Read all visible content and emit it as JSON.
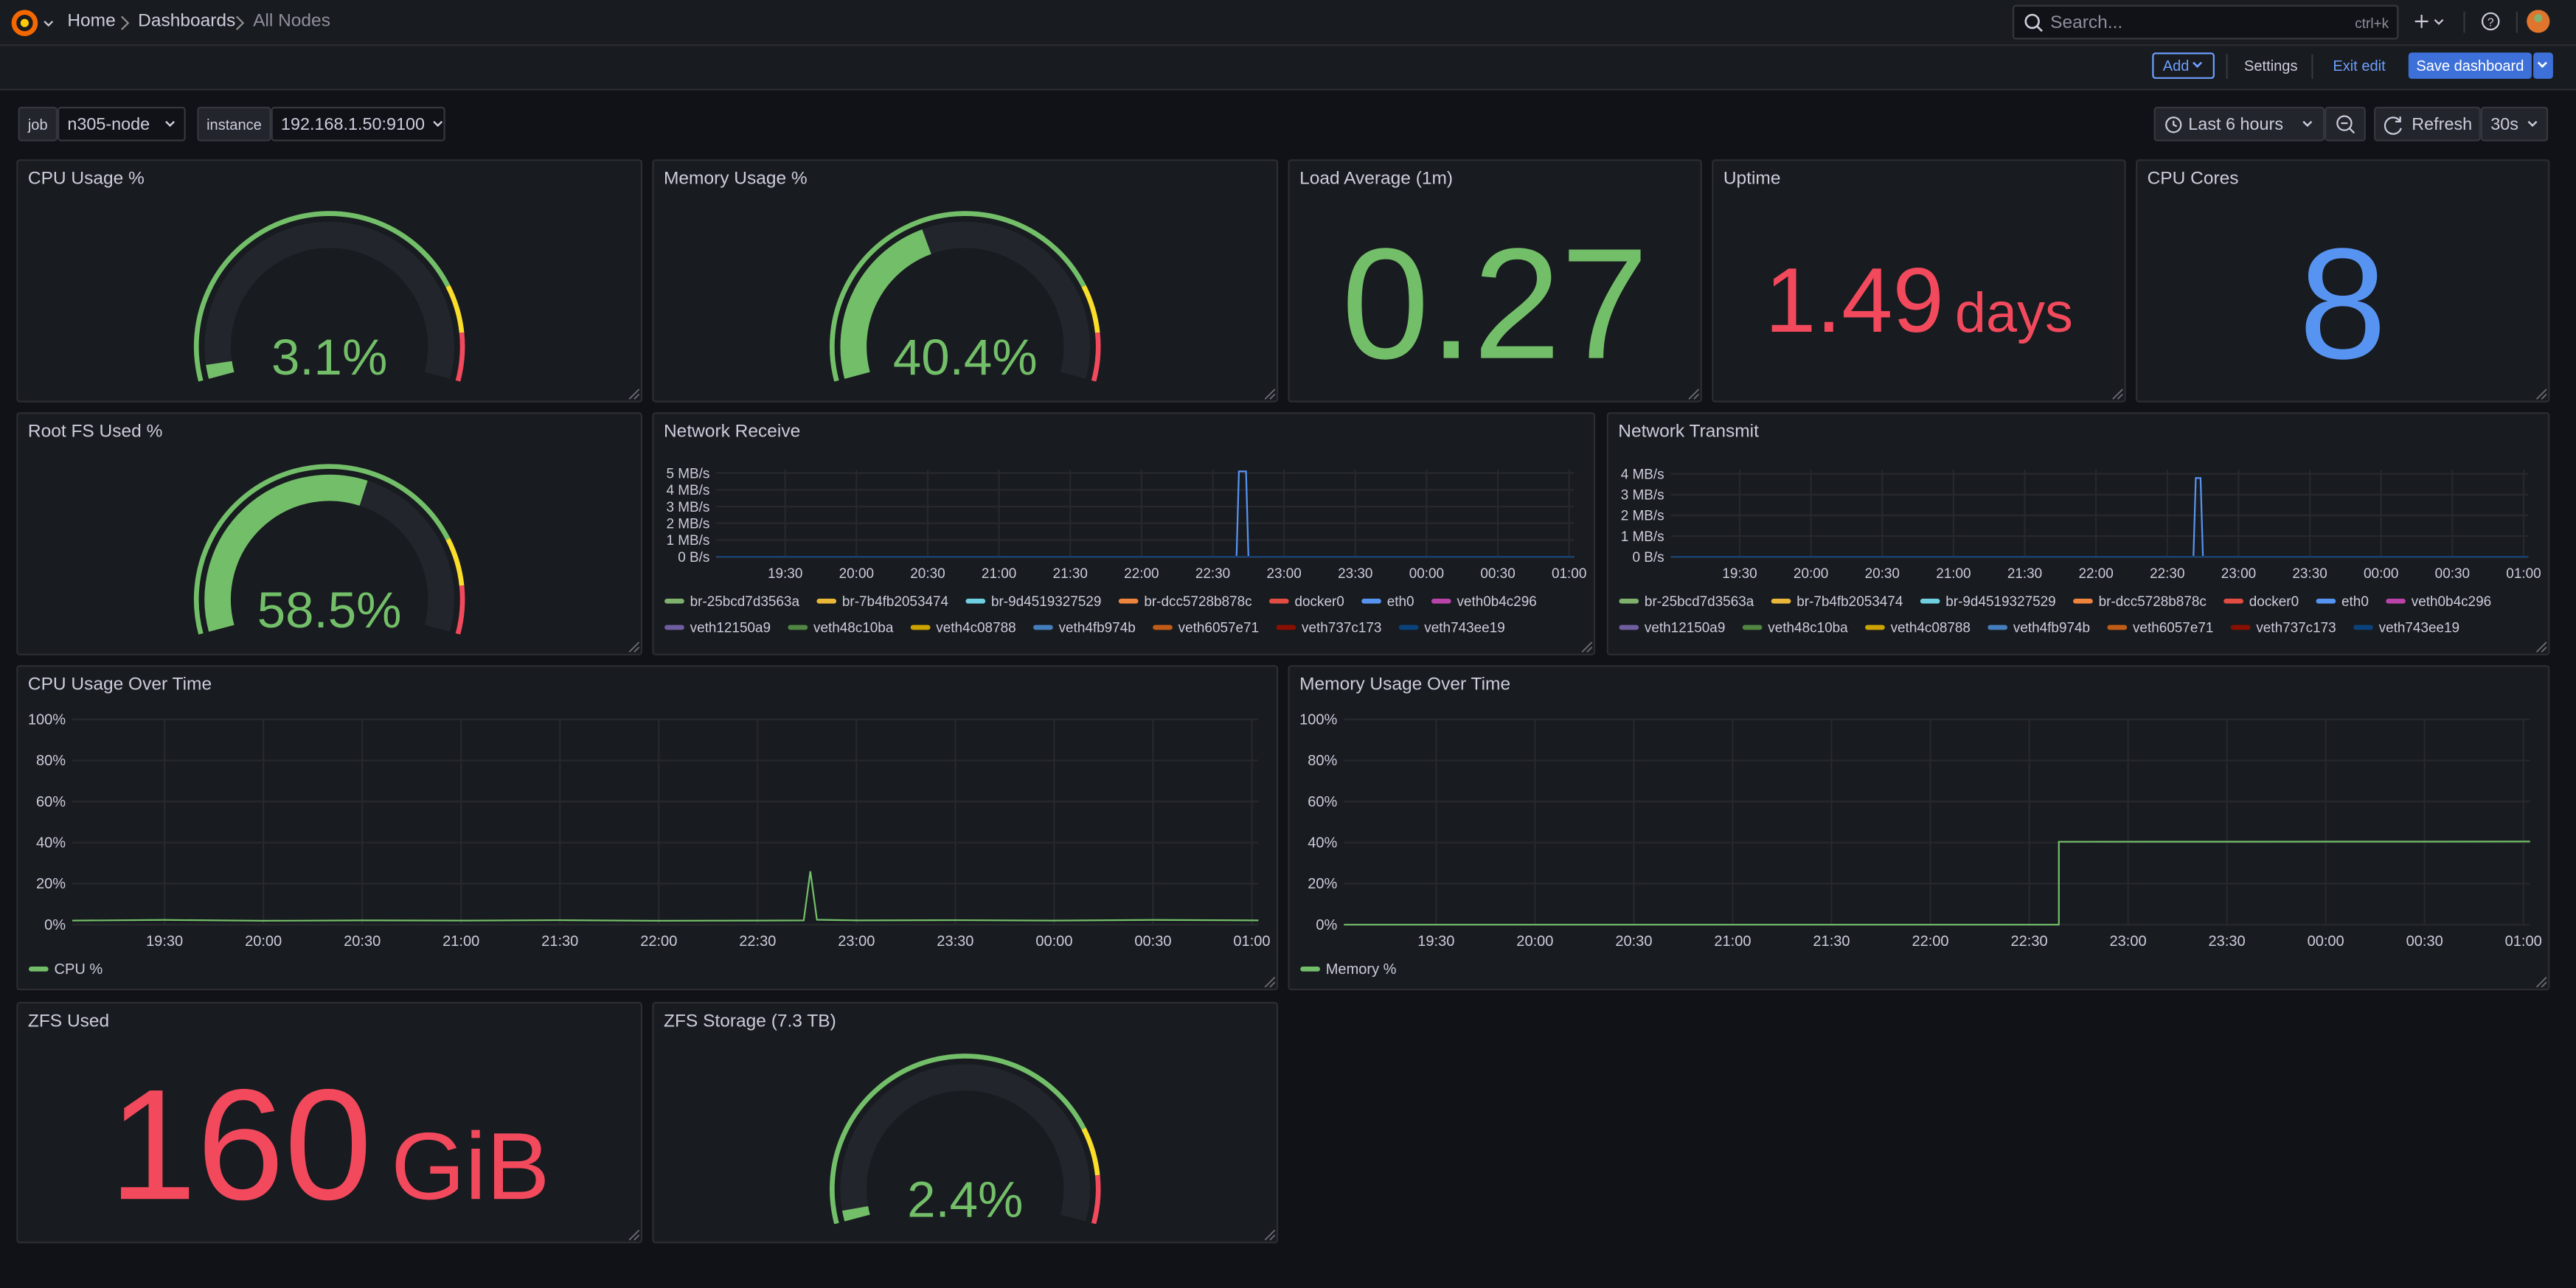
{
  "breadcrumbs": [
    "Home",
    "Dashboards",
    "All Nodes"
  ],
  "search": {
    "placeholder": "Search...",
    "shortcut": "ctrl+k"
  },
  "toolbar": {
    "add": "Add",
    "settings": "Settings",
    "exit": "Exit edit",
    "save": "Save dashboard"
  },
  "variables": [
    {
      "label": "job",
      "value": "n305-node"
    },
    {
      "label": "instance",
      "value": "192.168.1.50:9100"
    }
  ],
  "time_range": "Last 6 hours",
  "refresh": "Refresh",
  "refresh_interval": "30s",
  "panels": [
    {
      "type": "gauge",
      "title": "CPU Usage %",
      "value": 3.1,
      "value_label": "3.1%",
      "min": 0,
      "max": 100,
      "thresholds": [
        {
          "value": 0,
          "color": "#73bf69"
        },
        {
          "value": 80,
          "color": "#fade2a"
        },
        {
          "value": 90,
          "color": "#f2495c"
        }
      ]
    },
    {
      "type": "gauge",
      "title": "Memory Usage %",
      "value": 40.4,
      "value_label": "40.4%",
      "min": 0,
      "max": 100,
      "thresholds": [
        {
          "value": 0,
          "color": "#73bf69"
        },
        {
          "value": 80,
          "color": "#fade2a"
        },
        {
          "value": 90,
          "color": "#f2495c"
        }
      ]
    },
    {
      "type": "stat",
      "title": "Load Average (1m)",
      "value": 0.27,
      "color": "#73bf69"
    },
    {
      "type": "stat",
      "title": "Uptime",
      "value": 1.49,
      "unit": "days",
      "color": "#f2495c"
    },
    {
      "type": "stat",
      "title": "CPU Cores",
      "value": 8,
      "color": "#5794f2"
    },
    {
      "type": "gauge",
      "title": "Root FS Used %",
      "value": 58.5,
      "value_label": "58.5%",
      "min": 0,
      "max": 100,
      "thresholds": [
        {
          "value": 0,
          "color": "#73bf69"
        },
        {
          "value": 80,
          "color": "#fade2a"
        },
        {
          "value": 90,
          "color": "#f2495c"
        }
      ]
    },
    {
      "type": "timeseries",
      "title": "Network Receive",
      "x": [
        "19:01",
        "22:40",
        "22:41",
        "22:44",
        "22:45",
        "01:02"
      ],
      "xlim": [
        "19:01",
        "01:02"
      ],
      "xticks": [
        "19:30",
        "20:00",
        "20:30",
        "21:00",
        "21:30",
        "22:00",
        "22:30",
        "23:00",
        "23:30",
        "00:00",
        "00:30",
        "01:00"
      ],
      "ylim": [
        0,
        5.2
      ],
      "yticks": [
        {
          "value": 0,
          "label": "0 B/s"
        },
        {
          "value": 1,
          "label": "1 MB/s"
        },
        {
          "value": 2,
          "label": "2 MB/s"
        },
        {
          "value": 3,
          "label": "3 MB/s"
        },
        {
          "value": 4,
          "label": "4 MB/s"
        },
        {
          "value": 5,
          "label": "5 MB/s"
        }
      ],
      "grid": true,
      "series": [
        {
          "name": "br-25bcd7d3563a",
          "color": "#7eb26d",
          "values": [
            0,
            0,
            0,
            0,
            0,
            0
          ]
        },
        {
          "name": "br-7b4fb2053474",
          "color": "#eab839",
          "values": [
            0,
            0,
            0,
            0,
            0,
            0
          ]
        },
        {
          "name": "br-9d4519327529",
          "color": "#6ed0e0",
          "values": [
            0,
            0,
            0,
            0,
            0,
            0
          ]
        },
        {
          "name": "br-dcc5728b878c",
          "color": "#ef843c",
          "values": [
            0,
            0,
            0,
            0,
            0,
            0
          ]
        },
        {
          "name": "docker0",
          "color": "#e24d42",
          "values": [
            0,
            0,
            0,
            0,
            0,
            0
          ]
        },
        {
          "name": "eth0",
          "color": "#5794f2",
          "values": [
            0,
            0,
            5.1,
            5.1,
            0,
            0
          ]
        },
        {
          "name": "veth0b4c296",
          "color": "#ba43a9",
          "values": [
            0,
            0,
            0,
            0,
            0,
            0
          ]
        },
        {
          "name": "veth12150a9",
          "color": "#705da0",
          "values": [
            0,
            0,
            0,
            0,
            0,
            0
          ]
        },
        {
          "name": "veth48c10ba",
          "color": "#508642",
          "values": [
            0,
            0,
            0,
            0,
            0,
            0
          ]
        },
        {
          "name": "veth4c08788",
          "color": "#cca300",
          "values": [
            0,
            0,
            0,
            0,
            0,
            0
          ]
        },
        {
          "name": "veth4fb974b",
          "color": "#447ebc",
          "values": [
            0,
            0,
            0,
            0,
            0,
            0
          ]
        },
        {
          "name": "veth6057e71",
          "color": "#c15c17",
          "values": [
            0,
            0,
            0,
            0,
            0,
            0
          ]
        },
        {
          "name": "veth737c173",
          "color": "#890f02",
          "values": [
            0,
            0,
            0,
            0,
            0,
            0
          ]
        },
        {
          "name": "veth743ee19",
          "color": "#0a437c",
          "values": [
            0,
            0,
            0,
            0,
            0,
            0
          ]
        }
      ]
    },
    {
      "type": "timeseries",
      "title": "Network Transmit",
      "x": [
        "19:01",
        "22:41",
        "22:42",
        "22:44",
        "22:45",
        "01:02"
      ],
      "xlim": [
        "19:01",
        "01:02"
      ],
      "xticks": [
        "19:30",
        "20:00",
        "20:30",
        "21:00",
        "21:30",
        "22:00",
        "22:30",
        "23:00",
        "23:30",
        "00:00",
        "00:30",
        "01:00"
      ],
      "ylim": [
        0,
        4.2
      ],
      "yticks": [
        {
          "value": 0,
          "label": "0 B/s"
        },
        {
          "value": 1,
          "label": "1 MB/s"
        },
        {
          "value": 2,
          "label": "2 MB/s"
        },
        {
          "value": 3,
          "label": "3 MB/s"
        },
        {
          "value": 4,
          "label": "4 MB/s"
        }
      ],
      "grid": true,
      "series": [
        {
          "name": "br-25bcd7d3563a",
          "color": "#7eb26d",
          "values": [
            0,
            0,
            0,
            0,
            0,
            0
          ]
        },
        {
          "name": "br-7b4fb2053474",
          "color": "#eab839",
          "values": [
            0,
            0,
            0,
            0,
            0,
            0
          ]
        },
        {
          "name": "br-9d4519327529",
          "color": "#6ed0e0",
          "values": [
            0,
            0,
            0,
            0,
            0,
            0
          ]
        },
        {
          "name": "br-dcc5728b878c",
          "color": "#ef843c",
          "values": [
            0,
            0,
            0,
            0,
            0,
            0
          ]
        },
        {
          "name": "docker0",
          "color": "#e24d42",
          "values": [
            0,
            0,
            0,
            0,
            0,
            0
          ]
        },
        {
          "name": "eth0",
          "color": "#5794f2",
          "values": [
            0,
            0,
            3.8,
            3.8,
            0,
            0
          ]
        },
        {
          "name": "veth0b4c296",
          "color": "#ba43a9",
          "values": [
            0,
            0,
            0,
            0,
            0,
            0
          ]
        },
        {
          "name": "veth12150a9",
          "color": "#705da0",
          "values": [
            0,
            0,
            0,
            0,
            0,
            0
          ]
        },
        {
          "name": "veth48c10ba",
          "color": "#508642",
          "values": [
            0,
            0,
            0,
            0,
            0,
            0
          ]
        },
        {
          "name": "veth4c08788",
          "color": "#cca300",
          "values": [
            0,
            0,
            0,
            0,
            0,
            0
          ]
        },
        {
          "name": "veth4fb974b",
          "color": "#447ebc",
          "values": [
            0,
            0,
            0,
            0,
            0,
            0
          ]
        },
        {
          "name": "veth6057e71",
          "color": "#c15c17",
          "values": [
            0,
            0,
            0,
            0,
            0,
            0
          ]
        },
        {
          "name": "veth737c173",
          "color": "#890f02",
          "values": [
            0,
            0,
            0,
            0,
            0,
            0
          ]
        },
        {
          "name": "veth743ee19",
          "color": "#0a437c",
          "values": [
            0,
            0,
            0,
            0,
            0,
            0
          ]
        }
      ]
    },
    {
      "type": "timeseries",
      "title": "CPU Usage Over Time",
      "x": [
        "19:02",
        "19:30",
        "20:00",
        "20:30",
        "21:00",
        "21:30",
        "22:00",
        "22:30",
        "22:44",
        "22:46",
        "22:48",
        "23:00",
        "23:30",
        "00:00",
        "00:30",
        "01:02"
      ],
      "xlim": [
        "19:02",
        "01:02"
      ],
      "xticks": [
        "19:30",
        "20:00",
        "20:30",
        "21:00",
        "21:30",
        "22:00",
        "22:30",
        "23:00",
        "23:30",
        "00:00",
        "00:30",
        "01:00"
      ],
      "ylim": [
        0,
        100
      ],
      "yticks": [
        {
          "value": 0,
          "label": "0%"
        },
        {
          "value": 20,
          "label": "20%"
        },
        {
          "value": 40,
          "label": "40%"
        },
        {
          "value": 60,
          "label": "60%"
        },
        {
          "value": 80,
          "label": "80%"
        },
        {
          "value": 100,
          "label": "100%"
        }
      ],
      "grid": true,
      "series": [
        {
          "name": "CPU %",
          "color": "#73bf69",
          "values": [
            2,
            2.3,
            1.9,
            2.1,
            2,
            2.2,
            1.9,
            2,
            2.1,
            26,
            2.4,
            2.1,
            2.2,
            2,
            2.3,
            2.1
          ]
        }
      ]
    },
    {
      "type": "timeseries",
      "title": "Memory Usage Over Time",
      "x": [
        "19:02",
        "22:39",
        "22:39",
        "01:02"
      ],
      "xlim": [
        "19:02",
        "01:02"
      ],
      "xticks": [
        "19:30",
        "20:00",
        "20:30",
        "21:00",
        "21:30",
        "22:00",
        "22:30",
        "23:00",
        "23:30",
        "00:00",
        "00:30",
        "01:00"
      ],
      "ylim": [
        0,
        100
      ],
      "yticks": [
        {
          "value": 0,
          "label": "0%"
        },
        {
          "value": 20,
          "label": "20%"
        },
        {
          "value": 40,
          "label": "40%"
        },
        {
          "value": 60,
          "label": "60%"
        },
        {
          "value": 80,
          "label": "80%"
        },
        {
          "value": 100,
          "label": "100%"
        }
      ],
      "grid": true,
      "series": [
        {
          "name": "Memory %",
          "color": "#73bf69",
          "values": [
            0,
            0,
            40.4,
            40.5
          ]
        }
      ]
    },
    {
      "type": "stat",
      "title": "ZFS Used",
      "value": 160,
      "unit": "GiB",
      "color": "#f2495c"
    },
    {
      "type": "gauge",
      "title": "ZFS Storage (7.3 TB)",
      "value": 2.4,
      "value_label": "2.4%",
      "min": 0,
      "max": 100,
      "thresholds": [
        {
          "value": 0,
          "color": "#73bf69"
        },
        {
          "value": 80,
          "color": "#fade2a"
        },
        {
          "value": 90,
          "color": "#f2495c"
        }
      ]
    }
  ]
}
